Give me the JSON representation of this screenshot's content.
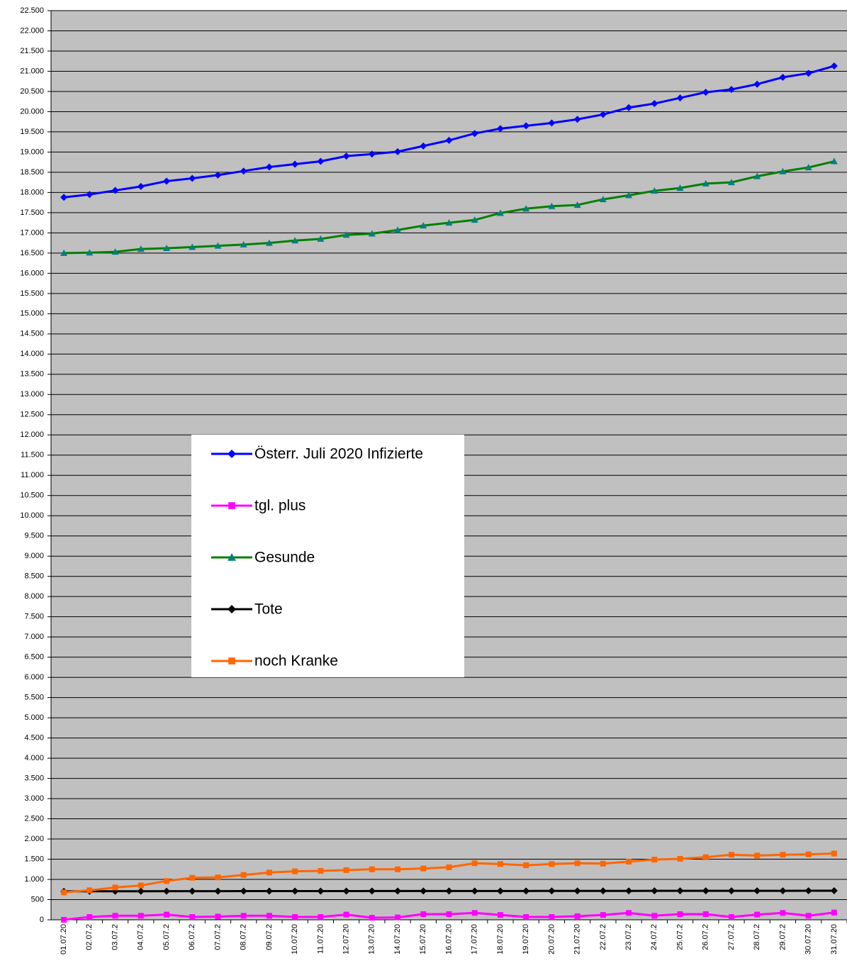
{
  "chart_data": {
    "type": "line",
    "categories": [
      "01.07.20",
      "02.07.2",
      "03.07.2",
      "04.07.2",
      "05.07.2",
      "06.07.2",
      "07.07.2",
      "08.07.2",
      "09.07.2",
      "10.07.20",
      "11.07.20",
      "12.07.20",
      "13.07.20",
      "14.07.20",
      "15.07.20",
      "16.07.20",
      "17.07.20",
      "18.07.20",
      "19.07.20",
      "20.07.20",
      "21.07.20",
      "22.07.2",
      "23.07.2",
      "24.07.2",
      "25.07.2",
      "26.07.2",
      "27.07.2",
      "28.07.2",
      "29.07.2",
      "30.07.20",
      "31.07.20"
    ],
    "series": [
      {
        "name": "Österr. Juli 2020 Infizierte",
        "color": "#0000ff",
        "marker": "diamond",
        "marker_color": "#0000ff",
        "values": [
          17880,
          17950,
          18050,
          18150,
          18280,
          18350,
          18430,
          18530,
          18630,
          18700,
          18770,
          18900,
          18950,
          19010,
          19150,
          19290,
          19460,
          19580,
          19650,
          19720,
          19810,
          19930,
          20100,
          20200,
          20340,
          20480,
          20550,
          20680,
          20850,
          20950,
          21130
        ]
      },
      {
        "name": "tgl. plus",
        "color": "#ff00ff",
        "marker": "square",
        "marker_color": "#ff00ff",
        "values": [
          0,
          70,
          100,
          100,
          130,
          70,
          80,
          100,
          100,
          70,
          70,
          130,
          50,
          60,
          140,
          140,
          170,
          120,
          70,
          70,
          90,
          120,
          170,
          100,
          140,
          140,
          70,
          130,
          170,
          100,
          180
        ]
      },
      {
        "name": "Gesunde",
        "color": "#008000",
        "marker": "triangle",
        "marker_color": "#008080",
        "values": [
          16500,
          16510,
          16530,
          16600,
          16620,
          16650,
          16680,
          16710,
          16750,
          16810,
          16850,
          16950,
          16980,
          17070,
          17180,
          17250,
          17320,
          17490,
          17600,
          17660,
          17690,
          17830,
          17930,
          18040,
          18110,
          18220,
          18250,
          18400,
          18520,
          18620,
          18770
        ]
      },
      {
        "name": "Tote",
        "color": "#000000",
        "marker": "diamond",
        "marker_color": "#000000",
        "values": [
          705,
          706,
          706,
          707,
          708,
          709,
          709,
          710,
          710,
          711,
          711,
          711,
          712,
          712,
          713,
          713,
          713,
          714,
          714,
          715,
          715,
          716,
          716,
          717,
          717,
          717,
          718,
          718,
          718,
          719,
          719
        ]
      },
      {
        "name": "noch Kranke",
        "color": "#ff6600",
        "marker": "square",
        "marker_color": "#ff6600",
        "values": [
          680,
          730,
          800,
          850,
          960,
          1040,
          1050,
          1110,
          1170,
          1200,
          1210,
          1230,
          1250,
          1250,
          1270,
          1300,
          1400,
          1380,
          1350,
          1380,
          1400,
          1390,
          1440,
          1490,
          1510,
          1550,
          1610,
          1590,
          1610,
          1620,
          1640
        ]
      }
    ],
    "ylim": [
      0,
      22500
    ],
    "yticks": [
      0,
      500,
      {
        "value": 1000,
        "label": "1.000"
      },
      {
        "value": 1500,
        "label": "1.500"
      },
      {
        "value": 2000,
        "label": "2.000"
      },
      {
        "value": 2500,
        "label": "2.500"
      },
      {
        "value": 3000,
        "label": "3.000"
      },
      {
        "value": 3500,
        "label": "3.500"
      },
      {
        "value": 4000,
        "label": "4.000"
      },
      {
        "value": 4500,
        "label": "4.500"
      },
      {
        "value": 5000,
        "label": "5.000"
      },
      {
        "value": 5500,
        "label": "5.500"
      },
      {
        "value": 6000,
        "label": "6.000"
      },
      {
        "value": 6500,
        "label": "6.500"
      },
      {
        "value": 7000,
        "label": "7.000"
      },
      {
        "value": 7500,
        "label": "7.500"
      },
      {
        "value": 8000,
        "label": "8.000"
      },
      {
        "value": 8500,
        "label": "8.500"
      },
      {
        "value": 9000,
        "label": "9.000"
      },
      {
        "value": 9500,
        "label": "9.500"
      },
      {
        "value": 10000,
        "label": "10.000"
      },
      {
        "value": 10500,
        "label": "10.500"
      },
      {
        "value": 11000,
        "label": "11.000"
      },
      {
        "value": 11500,
        "label": "11.500"
      },
      {
        "value": 12000,
        "label": "12.000"
      },
      {
        "value": 12500,
        "label": "12.500"
      },
      {
        "value": 13000,
        "label": "13.000"
      },
      {
        "value": 13500,
        "label": "13.500"
      },
      {
        "value": 14000,
        "label": "14.000"
      },
      {
        "value": 14500,
        "label": "14.500"
      },
      {
        "value": 15000,
        "label": "15.000"
      },
      {
        "value": 15500,
        "label": "15.500"
      },
      {
        "value": 16000,
        "label": "16.000"
      },
      {
        "value": 16500,
        "label": "16.500"
      },
      {
        "value": 17000,
        "label": "17.000"
      },
      {
        "value": 17500,
        "label": "17.500"
      },
      {
        "value": 18000,
        "label": "18.000"
      },
      {
        "value": 18500,
        "label": "18.500"
      },
      {
        "value": 19000,
        "label": "19.000"
      },
      {
        "value": 19500,
        "label": "19.500"
      },
      {
        "value": 20000,
        "label": "20.000"
      },
      {
        "value": 20500,
        "label": "20.500"
      },
      {
        "value": 21000,
        "label": "21.000"
      },
      {
        "value": 21500,
        "label": "21.500"
      },
      {
        "value": 22000,
        "label": "22.000"
      },
      {
        "value": 22500,
        "label": "22.500"
      }
    ],
    "grid": true,
    "plot_background": "#c0c0c0"
  }
}
